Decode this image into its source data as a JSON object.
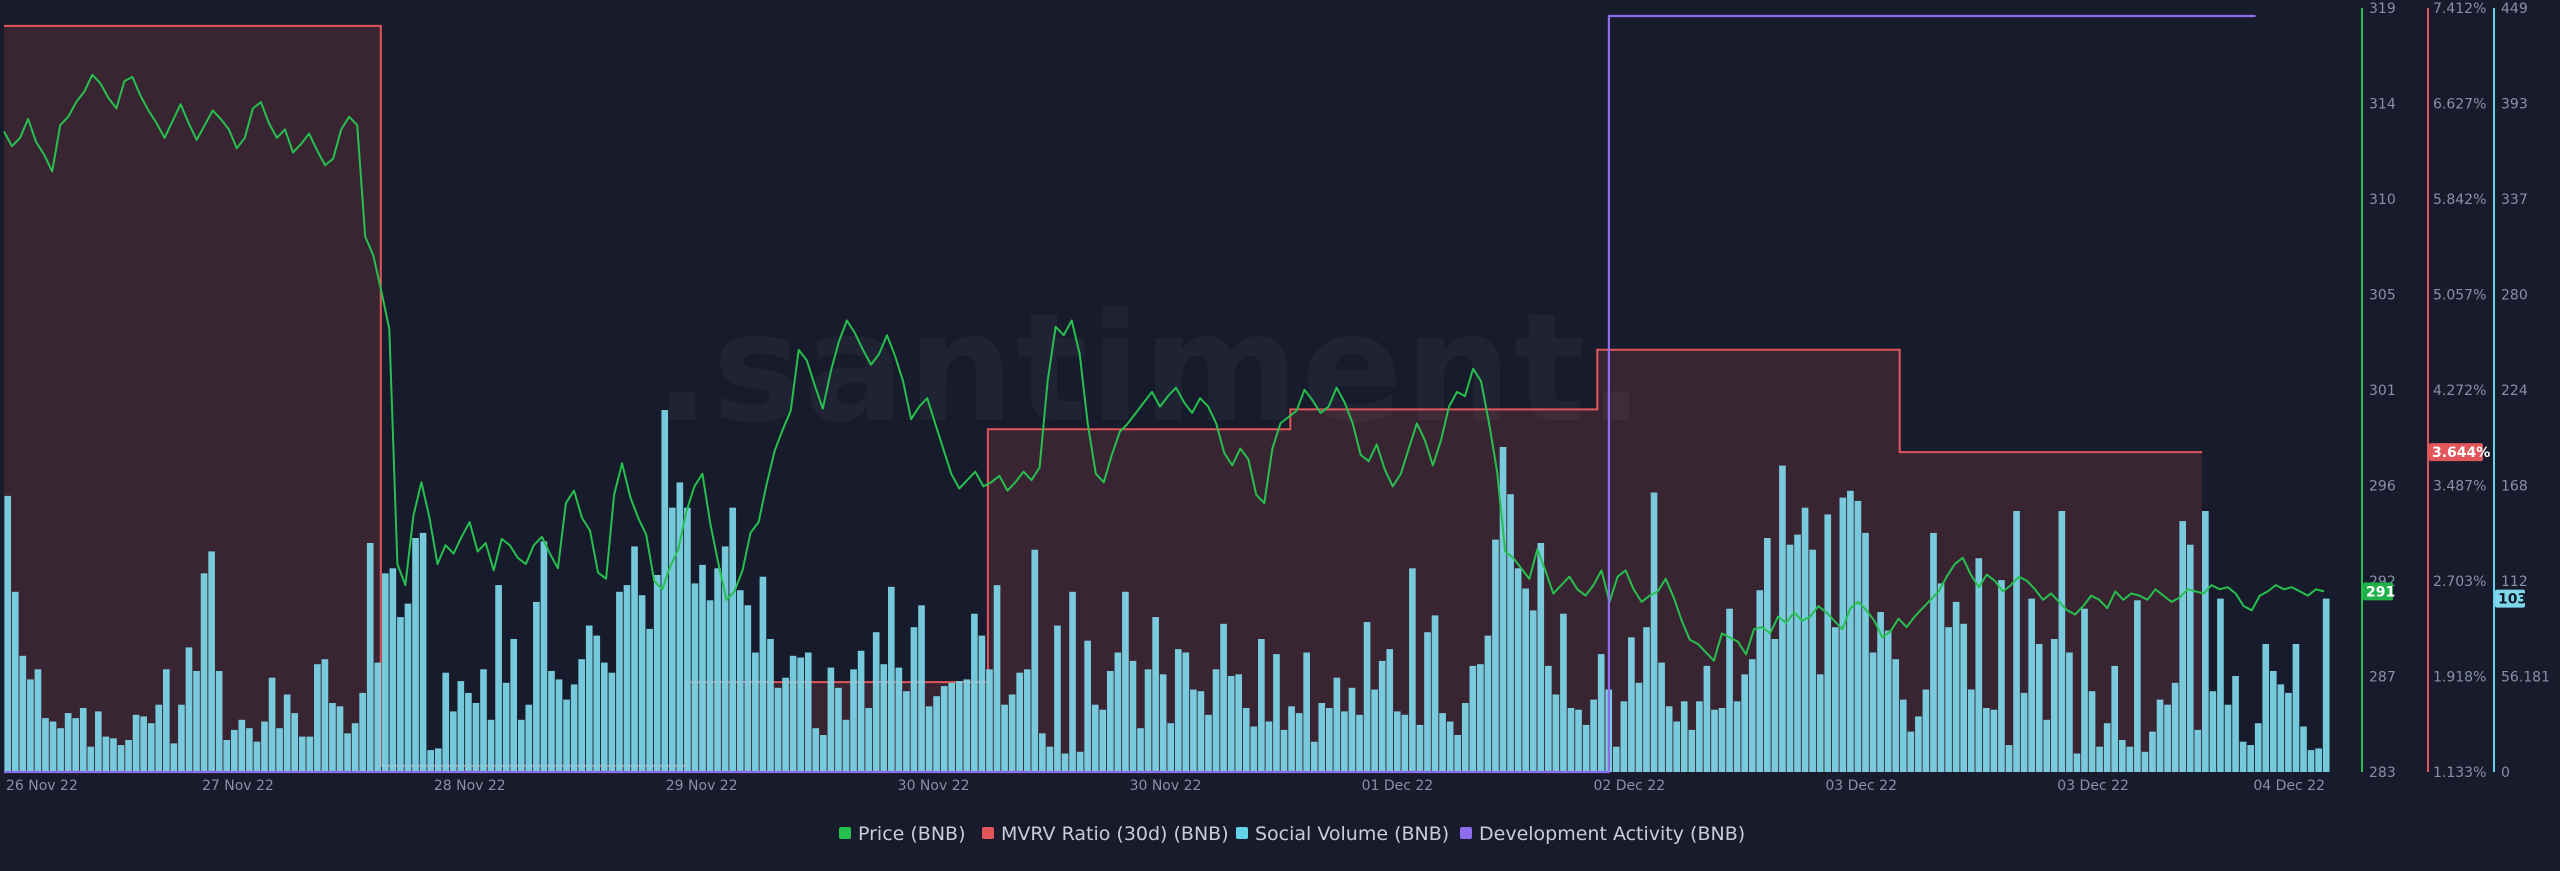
{
  "watermark": ".santiment.",
  "chart_data": {
    "type": "line",
    "x_ticks": [
      "26 Nov 22",
      "27 Nov 22",
      "28 Nov 22",
      "29 Nov 22",
      "30 Nov 22",
      "30 Nov 22",
      "01 Dec 22",
      "02 Dec 22",
      "03 Dec 22",
      "03 Dec 22",
      "04 Dec 22"
    ],
    "legend_position": "bottom-center",
    "grid": false,
    "axes": {
      "price": {
        "ticks": [
          "319",
          "314",
          "310",
          "305",
          "301",
          "296",
          "292",
          "287",
          "283"
        ],
        "range": [
          283,
          319
        ],
        "color": "#26c04f",
        "current_badge": "291"
      },
      "mvrv": {
        "ticks": [
          "7.412%",
          "6.627%",
          "5.842%",
          "5.057%",
          "4.272%",
          "3.487%",
          "2.703%",
          "1.918%",
          "1.133%"
        ],
        "range": [
          1.133,
          7.412
        ],
        "color": "#e0565b",
        "current_badge": "3.644%"
      },
      "social": {
        "ticks": [
          "449",
          "393",
          "337",
          "280",
          "224",
          "168",
          "112",
          "56.181",
          "0"
        ],
        "range": [
          0,
          449
        ],
        "color": "#63d3ea",
        "current_badge": "103"
      }
    },
    "series": [
      {
        "name": "Price (BNB)",
        "color": "#26c04f",
        "kind": "line",
        "values": [
          313.5,
          312.8,
          313.2,
          314.1,
          313,
          312.4,
          311.6,
          313.8,
          314.2,
          314.9,
          315.4,
          316.2,
          315.8,
          315.1,
          314.6,
          315.9,
          316.1,
          315.2,
          314.5,
          313.9,
          313.2,
          314,
          314.8,
          313.9,
          313.1,
          313.8,
          314.5,
          314.1,
          313.6,
          312.7,
          313.2,
          314.6,
          314.9,
          313.9,
          313.2,
          313.6,
          312.5,
          312.9,
          313.4,
          312.6,
          311.9,
          312.2,
          313.6,
          314.2,
          313.8,
          308.5,
          307.6,
          305.9,
          304.1,
          292.9,
          291.9,
          295.2,
          296.8,
          295.1,
          292.9,
          293.8,
          293.4,
          294.2,
          294.9,
          293.5,
          293.9,
          292.6,
          294.1,
          293.8,
          293.2,
          292.9,
          293.8,
          294.2,
          293.4,
          292.7,
          295.8,
          296.4,
          295.1,
          294.5,
          292.5,
          292.2,
          296.2,
          297.7,
          296.1,
          295.1,
          294.3,
          292.1,
          291.7,
          292.8,
          293.6,
          295.4,
          296.6,
          297.2,
          294.8,
          292.9,
          291.2,
          291.6,
          292.6,
          294.4,
          294.9,
          296.7,
          298.3,
          299.3,
          300.2,
          303.1,
          302.6,
          301.4,
          300.3,
          302.1,
          303.5,
          304.5,
          303.9,
          303.1,
          302.4,
          302.9,
          303.8,
          302.8,
          301.6,
          299.8,
          300.4,
          300.8,
          299.6,
          298.4,
          297.2,
          296.5,
          296.9,
          297.3,
          296.6,
          296.8,
          297.1,
          296.4,
          296.8,
          297.3,
          296.9,
          297.5,
          301.6,
          304.2,
          303.8,
          304.5,
          302.9,
          299.6,
          297.2,
          296.8,
          298.1,
          299.2,
          299.6,
          300.1,
          300.6,
          301.1,
          300.4,
          300.9,
          301.3,
          300.6,
          300.1,
          300.8,
          300.4,
          299.6,
          298.2,
          297.6,
          298.4,
          297.9,
          296.2,
          295.8,
          298.4,
          299.6,
          299.9,
          300.2,
          301.2,
          300.7,
          300.1,
          300.4,
          301.3,
          300.6,
          299.6,
          298.1,
          297.8,
          298.6,
          297.4,
          296.6,
          297.2,
          298.4,
          299.6,
          298.8,
          297.6,
          298.8,
          300.4,
          301.1,
          300.9,
          302.2,
          301.6,
          299.6,
          297.3,
          293.5,
          293.2,
          292.7,
          292.2,
          293.6,
          292.6,
          291.5,
          291.9,
          292.3,
          291.7,
          291.4,
          291.9,
          292.6,
          291.1,
          292.3,
          292.6,
          291.7,
          291.1,
          291.4,
          291.6,
          292.2,
          291.3,
          290.2,
          289.3,
          289.1,
          288.7,
          288.3,
          289.6,
          289.4,
          289.2,
          288.6,
          289.8,
          289.9,
          289.6,
          290.4,
          290.1,
          290.6,
          290.2,
          290.4,
          290.9,
          290.6,
          290.2,
          289.8,
          290.8,
          291.1,
          290.7,
          290.2,
          289.4,
          289.7,
          290.3,
          289.9,
          290.4,
          290.8,
          291.2,
          291.6,
          292.3,
          292.9,
          293.2,
          292.4,
          291.8,
          292.4,
          292.1,
          291.6,
          291.9,
          292.3,
          292.1,
          291.7,
          291.2,
          291.5,
          291.1,
          290.7,
          290.5,
          290.9,
          291.4,
          291.2,
          290.8,
          291.6,
          291.2,
          291.5,
          291.4,
          291.2,
          291.7,
          291.4,
          291.1,
          291.3,
          291.7,
          291.6,
          291.5,
          291.9,
          291.7,
          291.8,
          291.5,
          290.9,
          290.7,
          291.4,
          291.6,
          291.9,
          291.7,
          291.8,
          291.6,
          291.4,
          291.7,
          291.6
        ]
      },
      {
        "name": "MVRV Ratio (30d) (BNB)",
        "color": "#e0565b",
        "kind": "step",
        "steps": [
          {
            "from": 0,
            "to": 0.162,
            "value": 7.33
          },
          {
            "from": 0.162,
            "to": 0.293,
            "value": 1.185
          },
          {
            "from": 0.293,
            "to": 0.423,
            "value": 1.88
          },
          {
            "from": 0.423,
            "to": 0.553,
            "value": 3.98
          },
          {
            "from": 0.553,
            "to": 0.685,
            "value": 4.145
          },
          {
            "from": 0.685,
            "to": 0.815,
            "value": 4.64
          },
          {
            "from": 0.815,
            "to": 0.945,
            "value": 3.79
          }
        ]
      },
      {
        "name": "Social Volume (BNB)",
        "color": "#63d3ea",
        "kind": "bar",
        "values": [
          164,
          107,
          69,
          55,
          61,
          32,
          30,
          26,
          35,
          32,
          38,
          15,
          36,
          21,
          20,
          16,
          19,
          34,
          33,
          29,
          40,
          61,
          17,
          40,
          74,
          60,
          118,
          131,
          60,
          19,
          25,
          31,
          26,
          18,
          30,
          56,
          26,
          46,
          35,
          21,
          21,
          64,
          67,
          41,
          39,
          23,
          29,
          47,
          136,
          65,
          118,
          121,
          92,
          100,
          139,
          142,
          13,
          14,
          59,
          36,
          54,
          47,
          41,
          61,
          31,
          111,
          53,
          79,
          31,
          40,
          101,
          137,
          60,
          55,
          43,
          52,
          67,
          87,
          81,
          65,
          59,
          107,
          111,
          134,
          105,
          85,
          117,
          215,
          157,
          172,
          157,
          112,
          123,
          102,
          121,
          134,
          157,
          108,
          99,
          71,
          116,
          79,
          50,
          56,
          69,
          68,
          71,
          26,
          22,
          62,
          50,
          31,
          61,
          72,
          38,
          83,
          64,
          110,
          62,
          48,
          86,
          99,
          39,
          45,
          51,
          53,
          54,
          55,
          94,
          81,
          61,
          111,
          40,
          46,
          59,
          61,
          132,
          23,
          15,
          87,
          11,
          107,
          12,
          78,
          40,
          37,
          60,
          71,
          107,
          66,
          26,
          61,
          92,
          58,
          29,
          73,
          71,
          49,
          48,
          34,
          61,
          88,
          57,
          58,
          38,
          27,
          79,
          30,
          70,
          25,
          39,
          35,
          71,
          18,
          41,
          38,
          56,
          36,
          50,
          34,
          89,
          49,
          66,
          73,
          36,
          34,
          121,
          28,
          83,
          93,
          35,
          30,
          22,
          41,
          63,
          64,
          81,
          138,
          193,
          165,
          121,
          109,
          96,
          136,
          63,
          46,
          94,
          38,
          37,
          28,
          43,
          70,
          49,
          15,
          42,
          80,
          53,
          86,
          166,
          65,
          39,
          30,
          42,
          25,
          42,
          63,
          37,
          38,
          97,
          42,
          58,
          67,
          108,
          139,
          79,
          182,
          135,
          141,
          157,
          132,
          58,
          153,
          86,
          163,
          167,
          161,
          142,
          71,
          95,
          84,
          67,
          43,
          24,
          33,
          49,
          142,
          112,
          86,
          101,
          88,
          49,
          127,
          38,
          37,
          114,
          16,
          155,
          47,
          103,
          76,
          31,
          79,
          155,
          71,
          11,
          97,
          48,
          15,
          29,
          63,
          19,
          15,
          102,
          12,
          24,
          43,
          40,
          53,
          149,
          135,
          25,
          155,
          48,
          103,
          40,
          57,
          18,
          16,
          29,
          76,
          60,
          52,
          47,
          76,
          27,
          13,
          14,
          103
        ]
      },
      {
        "name": "Development Activity (BNB)",
        "color": "#8e6cf0",
        "kind": "step",
        "steps": [
          {
            "from": 0,
            "to": 0.69,
            "value": 0
          },
          {
            "from": 0.69,
            "to": 0.968,
            "value": 449
          }
        ]
      }
    ]
  }
}
